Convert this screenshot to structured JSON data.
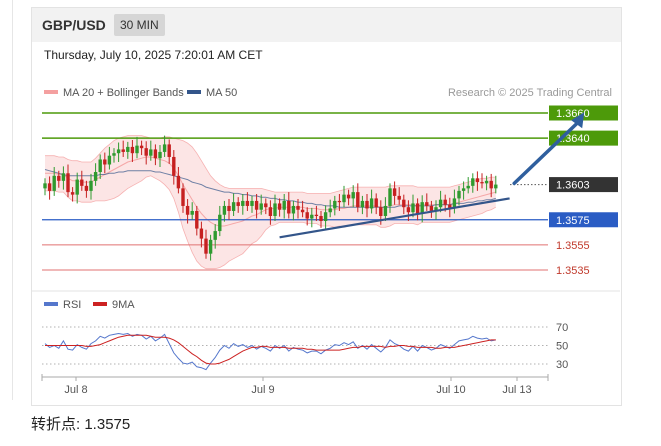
{
  "header": {
    "symbol": "GBP/USD",
    "interval": "30 MIN"
  },
  "timestamp": "Thursday, July 10, 2025 7:20:01 AM CET",
  "footer": {
    "label": "转折点:",
    "value": "1.3575"
  },
  "colors": {
    "bollinger": "#f4a0a0",
    "ma50": "#33558a",
    "bull": "#2f9a2f",
    "bear": "#c62020",
    "resistance": "#4d9a0a",
    "pivot": "#2a5cc4",
    "support": "#e07070",
    "current": "#333333",
    "arrow": "#2f5f9e",
    "rsi": "#5577cc",
    "rsi_ma": "#cc2222"
  },
  "chart_data": [
    {
      "type": "candlestick",
      "legend": {
        "items": [
          "MA 20 + Bollinger Bands",
          "MA 50"
        ],
        "placement": "top-left"
      },
      "credit": "Research © 2025 Trading Central",
      "x_ticks": [
        "Jul 8",
        "Jul 9",
        "Jul 10",
        "Jul 13"
      ],
      "ylim": [
        1.3508,
        1.3668
      ],
      "grid": false,
      "levels": [
        {
          "value": 1.366,
          "label": "1.3660",
          "role": "resistance"
        },
        {
          "value": 1.364,
          "label": "1.3640",
          "role": "resistance"
        },
        {
          "value": 1.3603,
          "label": "1.3603",
          "role": "current"
        },
        {
          "value": 1.3575,
          "label": "1.3575",
          "role": "pivot"
        },
        {
          "value": 1.3555,
          "label": "1.3555",
          "role": "support"
        },
        {
          "value": 1.3535,
          "label": "1.3535",
          "role": "support"
        }
      ],
      "close": [
        1.3604,
        1.3598,
        1.361,
        1.3606,
        1.3612,
        1.3597,
        1.3595,
        1.3607,
        1.3602,
        1.3598,
        1.3606,
        1.3613,
        1.3623,
        1.3619,
        1.3626,
        1.3628,
        1.3631,
        1.3629,
        1.3633,
        1.3628,
        1.3634,
        1.3632,
        1.3626,
        1.3631,
        1.3624,
        1.3629,
        1.3635,
        1.3625,
        1.361,
        1.36,
        1.3586,
        1.3579,
        1.3582,
        1.3568,
        1.356,
        1.3548,
        1.3559,
        1.3566,
        1.3579,
        1.3586,
        1.3582,
        1.3589,
        1.3586,
        1.359,
        1.3586,
        1.359,
        1.3583,
        1.3588,
        1.3585,
        1.3578,
        1.3588,
        1.3583,
        1.359,
        1.358,
        1.3586,
        1.3583,
        1.3581,
        1.3576,
        1.3579,
        1.3578,
        1.3574,
        1.3581,
        1.3584,
        1.359,
        1.3589,
        1.3595,
        1.3592,
        1.3597,
        1.3585,
        1.359,
        1.3584,
        1.3592,
        1.3585,
        1.3578,
        1.3586,
        1.36,
        1.3594,
        1.3591,
        1.3585,
        1.3581,
        1.3588,
        1.358,
        1.3589,
        1.3586,
        1.3582,
        1.3585,
        1.3591,
        1.3587,
        1.3584,
        1.3592,
        1.3598,
        1.36,
        1.3602,
        1.3608,
        1.3605,
        1.3604,
        1.3606,
        1.36,
        1.3603
      ],
      "ma20": [
        1.3612,
        1.3612,
        1.3612,
        1.3611,
        1.3611,
        1.3608,
        1.3606,
        1.3606,
        1.3605,
        1.3605,
        1.3605,
        1.3607,
        1.3609,
        1.3611,
        1.3613,
        1.3615,
        1.3617,
        1.3619,
        1.3621,
        1.3622,
        1.3623,
        1.3624,
        1.3625,
        1.3625,
        1.3624,
        1.3623,
        1.3622,
        1.362,
        1.3616,
        1.361,
        1.3603,
        1.3597,
        1.3591,
        1.3585,
        1.358,
        1.3576,
        1.3573,
        1.3571,
        1.357,
        1.357,
        1.3571,
        1.3572,
        1.3573,
        1.3574,
        1.3576,
        1.3578,
        1.3579,
        1.3581,
        1.3583,
        1.3584,
        1.3584,
        1.3585,
        1.3585,
        1.3585,
        1.3585,
        1.3585,
        1.3585,
        1.3584,
        1.3584,
        1.3584,
        1.3583,
        1.3583,
        1.3583,
        1.3583,
        1.3584,
        1.3584,
        1.3585,
        1.3586,
        1.3586,
        1.3586,
        1.3586,
        1.3586,
        1.3586,
        1.3585,
        1.3585,
        1.3586,
        1.3587,
        1.3587,
        1.3587,
        1.3587,
        1.3587,
        1.3586,
        1.3587,
        1.3587,
        1.3587,
        1.3587,
        1.3587,
        1.3587,
        1.3587,
        1.3588,
        1.3589,
        1.359,
        1.3591,
        1.3592,
        1.3593,
        1.3594,
        1.3595,
        1.3596,
        1.3597
      ],
      "ma50": [
        1.3615,
        1.3614,
        1.3613,
        1.3612,
        1.3611,
        1.361,
        1.361,
        1.361,
        1.361,
        1.361,
        1.361,
        1.361,
        1.3611,
        1.3611,
        1.3612,
        1.3612,
        1.3613,
        1.3613,
        1.3614,
        1.3614,
        1.3614,
        1.3614,
        1.3614,
        1.3614,
        1.3613,
        1.3613,
        1.3612,
        1.3611,
        1.361,
        1.3609,
        1.3608,
        1.3607,
        1.3605,
        1.3604,
        1.3603,
        1.3601,
        1.36,
        1.3599,
        1.3598,
        1.3597,
        1.3597,
        1.3596,
        1.3596,
        1.3595,
        1.3595,
        1.3594,
        1.3594,
        1.3593,
        1.3593,
        1.3592,
        1.3592,
        1.3591,
        1.3591,
        1.359,
        1.359,
        1.3589,
        1.3589,
        1.3588,
        1.3588,
        1.3587,
        1.3587,
        1.3586,
        1.3586,
        1.3586,
        1.3585,
        1.3585,
        1.3585,
        1.3585,
        1.3585,
        1.3585,
        1.3585,
        1.3585,
        1.3585,
        1.3585,
        1.3585,
        1.3585,
        1.3585,
        1.3586,
        1.3586,
        1.3586,
        1.3586,
        1.3586,
        1.3586,
        1.3586,
        1.3586,
        1.3587,
        1.3587,
        1.3587,
        1.3587,
        1.3588,
        1.3588,
        1.3588,
        1.3589,
        1.3589,
        1.359,
        1.359,
        1.3591,
        1.3591,
        1.3592
      ],
      "bb_upper": [
        1.3626,
        1.3626,
        1.3626,
        1.3625,
        1.3625,
        1.3623,
        1.3622,
        1.3622,
        1.3621,
        1.3621,
        1.3621,
        1.3624,
        1.3628,
        1.3632,
        1.3635,
        1.3638,
        1.364,
        1.3641,
        1.3642,
        1.3642,
        1.3642,
        1.3642,
        1.3641,
        1.364,
        1.364,
        1.364,
        1.3641,
        1.3641,
        1.364,
        1.3639,
        1.3638,
        1.3636,
        1.3633,
        1.3628,
        1.3622,
        1.3616,
        1.361,
        1.3606,
        1.3603,
        1.3601,
        1.36,
        1.36,
        1.36,
        1.36,
        1.36,
        1.36,
        1.36,
        1.36,
        1.3599,
        1.3598,
        1.3597,
        1.3597,
        1.3597,
        1.3597,
        1.3597,
        1.3597,
        1.3597,
        1.3596,
        1.3596,
        1.3596,
        1.3596,
        1.3596,
        1.3596,
        1.3597,
        1.3598,
        1.3599,
        1.36,
        1.3601,
        1.3601,
        1.3601,
        1.3601,
        1.3601,
        1.3601,
        1.3601,
        1.3601,
        1.3602,
        1.3602,
        1.3602,
        1.3602,
        1.3602,
        1.3602,
        1.3601,
        1.3601,
        1.3601,
        1.3601,
        1.3601,
        1.3601,
        1.3601,
        1.3601,
        1.3602,
        1.3603,
        1.3604,
        1.3605,
        1.3606,
        1.3607,
        1.3608,
        1.3608,
        1.3609,
        1.3609
      ],
      "bb_lower": [
        1.3598,
        1.3598,
        1.3598,
        1.3597,
        1.3597,
        1.3593,
        1.359,
        1.359,
        1.3589,
        1.3589,
        1.3589,
        1.359,
        1.359,
        1.359,
        1.3591,
        1.3592,
        1.3594,
        1.3597,
        1.36,
        1.3602,
        1.3604,
        1.3606,
        1.3609,
        1.361,
        1.3608,
        1.3606,
        1.3603,
        1.3599,
        1.3592,
        1.3581,
        1.3568,
        1.3558,
        1.3549,
        1.3542,
        1.3538,
        1.3536,
        1.3536,
        1.3536,
        1.3537,
        1.3539,
        1.3542,
        1.3544,
        1.3546,
        1.3548,
        1.3552,
        1.3556,
        1.3558,
        1.3562,
        1.3567,
        1.357,
        1.3571,
        1.3573,
        1.3573,
        1.3573,
        1.3573,
        1.3573,
        1.3573,
        1.3572,
        1.3572,
        1.3572,
        1.357,
        1.357,
        1.357,
        1.3569,
        1.357,
        1.3569,
        1.357,
        1.3571,
        1.3571,
        1.3571,
        1.3571,
        1.3571,
        1.3571,
        1.3569,
        1.3569,
        1.357,
        1.3572,
        1.3572,
        1.3572,
        1.3572,
        1.3572,
        1.3571,
        1.3573,
        1.3573,
        1.3573,
        1.3573,
        1.3573,
        1.3573,
        1.3573,
        1.3574,
        1.3575,
        1.3576,
        1.3577,
        1.3578,
        1.3579,
        1.358,
        1.3582,
        1.3583,
        1.3585
      ],
      "trendline": {
        "from_index": 51,
        "from": 1.3561,
        "to_index": 101,
        "to": 1.3592
      },
      "projection": {
        "from_index": 102,
        "from": 1.3604,
        "to_index": 117,
        "to": 1.3659
      }
    },
    {
      "type": "line",
      "legend": {
        "items": [
          "RSI",
          "9MA"
        ],
        "placement": "top-left"
      },
      "ylim": [
        20,
        76
      ],
      "y_ticks": [
        70,
        50,
        30
      ],
      "guides": [
        70,
        50,
        30
      ],
      "series": [
        {
          "name": "RSI",
          "values": [
            52,
            48,
            50,
            47,
            55,
            46,
            45,
            51,
            48,
            46,
            52,
            55,
            60,
            58,
            61,
            62,
            63,
            62,
            63,
            60,
            62,
            61,
            57,
            60,
            55,
            58,
            62,
            52,
            42,
            36,
            31,
            30,
            32,
            27,
            26,
            24,
            31,
            37,
            45,
            50,
            47,
            52,
            49,
            51,
            48,
            50,
            46,
            49,
            47,
            44,
            50,
            47,
            50,
            44,
            48,
            46,
            45,
            42,
            44,
            44,
            41,
            45,
            47,
            51,
            50,
            53,
            51,
            54,
            47,
            50,
            46,
            51,
            47,
            43,
            48,
            56,
            52,
            50,
            46,
            44,
            49,
            44,
            50,
            48,
            45,
            47,
            51,
            49,
            47,
            51,
            55,
            56,
            57,
            60,
            58,
            57,
            58,
            55,
            56
          ]
        },
        {
          "name": "9MA",
          "values": [
            50,
            50,
            50,
            50,
            50,
            50,
            50,
            50,
            50,
            49,
            49,
            50,
            51,
            53,
            55,
            57,
            59,
            60,
            61,
            61,
            61,
            61,
            61,
            60,
            59,
            59,
            59,
            58,
            56,
            53,
            49,
            45,
            41,
            38,
            34,
            31,
            30,
            30,
            31,
            33,
            35,
            38,
            41,
            44,
            46,
            48,
            48,
            49,
            49,
            48,
            48,
            48,
            48,
            47,
            47,
            47,
            47,
            46,
            46,
            45,
            45,
            45,
            45,
            45,
            45,
            46,
            47,
            48,
            48,
            49,
            49,
            49,
            49,
            49,
            48,
            49,
            49,
            50,
            50,
            49,
            49,
            48,
            48,
            48,
            48,
            47,
            47,
            48,
            48,
            48,
            49,
            50,
            51,
            52,
            53,
            54,
            55,
            56,
            56
          ]
        }
      ]
    }
  ]
}
